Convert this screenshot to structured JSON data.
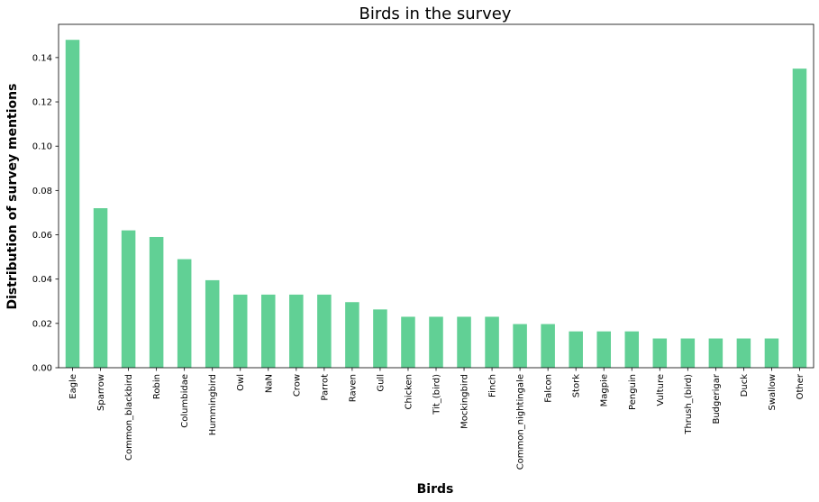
{
  "chart_data": {
    "type": "bar",
    "title": "Birds in the survey",
    "xlabel": "Birds",
    "ylabel": "Distribution of survey mentions",
    "categories": [
      "Eagle",
      "Sparrow",
      "Common_blackbird",
      "Robin",
      "Columbidae",
      "Hummingbird",
      "Owl",
      "NaN",
      "Crow",
      "Parrot",
      "Raven",
      "Gull",
      "Chicken",
      "Tit_(bird)",
      "Mockingbird",
      "Finch",
      "Common_nightingale",
      "Falcon",
      "Stork",
      "Magpie",
      "Penguin",
      "Vulture",
      "Thrush_(bird)",
      "Budgerigar",
      "Duck",
      "Swallow",
      "Other"
    ],
    "values": [
      0.148,
      0.072,
      0.062,
      0.059,
      0.049,
      0.0395,
      0.033,
      0.033,
      0.033,
      0.033,
      0.0296,
      0.0263,
      0.023,
      0.023,
      0.023,
      0.023,
      0.0197,
      0.0197,
      0.0164,
      0.0164,
      0.0164,
      0.0132,
      0.0132,
      0.0132,
      0.0132,
      0.0132,
      0.135
    ],
    "ylim": [
      0,
      0.155
    ],
    "yticks": [
      "0.00",
      "0.02",
      "0.04",
      "0.06",
      "0.08",
      "0.10",
      "0.12",
      "0.14"
    ],
    "bar_color": "#61d095",
    "grid": false
  }
}
